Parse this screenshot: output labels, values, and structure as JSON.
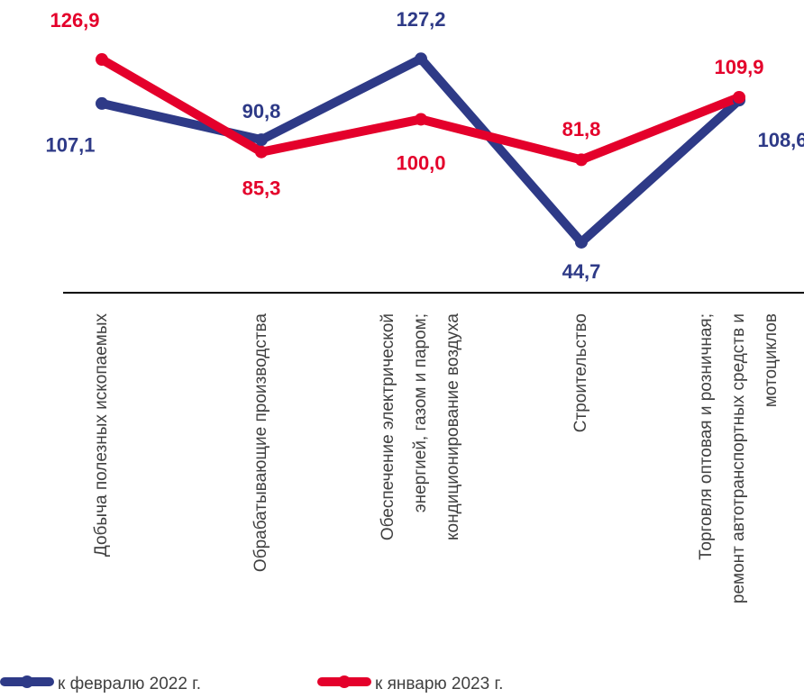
{
  "chart_data": {
    "type": "line",
    "categories": [
      [
        "Добыча полезных ископаемых"
      ],
      [
        "Обрабатывающие производства"
      ],
      [
        "Обеспечение электрической",
        "энергией, газом и паром;",
        "кондиционирование воздуха"
      ],
      [
        "Строительство"
      ],
      [
        "Торговля оптовая и розничная;",
        "ремонт автотранспортных средств и",
        "мотоциклов"
      ]
    ],
    "series": [
      {
        "name": "к февралю 2022 г.",
        "color": "#2e3a87",
        "values": [
          107.1,
          90.8,
          127.2,
          44.7,
          108.6
        ],
        "value_labels": [
          "107,1",
          "90,8",
          "127,2",
          "44,7",
          "108,6"
        ]
      },
      {
        "name": "к январю 2023 г.",
        "color": "#e4002b",
        "values": [
          126.9,
          85.3,
          100.0,
          81.8,
          109.9
        ],
        "value_labels": [
          "126,9",
          "85,3",
          "100,0",
          "81,8",
          "109,9"
        ]
      }
    ],
    "ylim": [
      22,
      150
    ]
  }
}
